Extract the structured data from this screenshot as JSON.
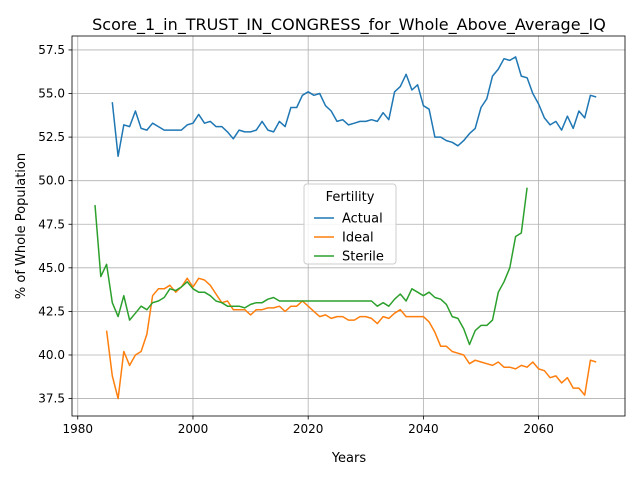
{
  "chart_data": {
    "type": "line",
    "title": "Score_1_in_TRUST_IN_CONGRESS_for_Whole_Above_Average_IQ",
    "xlabel": "Years",
    "ylabel": "% of Whole Population",
    "xlim": [
      1979,
      2075
    ],
    "ylim": [
      36.5,
      58.3
    ],
    "xticks": [
      1980,
      2000,
      2020,
      2040,
      2060
    ],
    "yticks": [
      37.5,
      40.0,
      42.5,
      45.0,
      47.5,
      50.0,
      52.5,
      55.0,
      57.5
    ],
    "xtick_labels": [
      "1980",
      "2000",
      "2020",
      "2040",
      "2060"
    ],
    "ytick_labels": [
      "37.5",
      "40.0",
      "42.5",
      "45.0",
      "47.5",
      "50.0",
      "52.5",
      "55.0",
      "57.5"
    ],
    "grid": true,
    "legend": {
      "title": "Fertility",
      "location": "center"
    },
    "series": [
      {
        "name": "Actual",
        "color": "#1f77b4",
        "x": [
          1986,
          1987,
          1988,
          1989,
          1990,
          1991,
          1992,
          1993,
          1994,
          1995,
          1996,
          1997,
          1998,
          1999,
          2000,
          2001,
          2002,
          2003,
          2004,
          2005,
          2006,
          2007,
          2008,
          2009,
          2010,
          2011,
          2012,
          2013,
          2014,
          2015,
          2016,
          2017,
          2018,
          2019,
          2020,
          2021,
          2022,
          2023,
          2024,
          2025,
          2026,
          2027,
          2028,
          2029,
          2030,
          2031,
          2032,
          2033,
          2034,
          2035,
          2036,
          2037,
          2038,
          2039,
          2040,
          2041,
          2042,
          2043,
          2044,
          2045,
          2046,
          2047,
          2048,
          2049,
          2050,
          2051,
          2052,
          2053,
          2054,
          2055,
          2056,
          2057,
          2058,
          2059,
          2060,
          2061,
          2062,
          2063,
          2064,
          2065,
          2066,
          2067,
          2068,
          2069,
          2070
        ],
        "y": [
          54.5,
          51.4,
          53.2,
          53.1,
          54.0,
          53.0,
          52.9,
          53.3,
          53.1,
          52.9,
          52.9,
          52.9,
          52.9,
          53.2,
          53.3,
          53.8,
          53.3,
          53.4,
          53.1,
          53.1,
          52.8,
          52.4,
          52.9,
          52.8,
          52.8,
          52.9,
          53.4,
          52.9,
          52.8,
          53.4,
          53.1,
          54.2,
          54.2,
          54.9,
          55.1,
          54.9,
          55.0,
          54.3,
          54.0,
          53.4,
          53.5,
          53.2,
          53.3,
          53.4,
          53.4,
          53.5,
          53.4,
          53.9,
          53.5,
          55.1,
          55.4,
          56.1,
          55.2,
          55.5,
          54.3,
          54.1,
          52.5,
          52.5,
          52.3,
          52.2,
          52.0,
          52.3,
          52.7,
          53.0,
          54.2,
          54.7,
          56.0,
          56.4,
          57.0,
          56.9,
          57.1,
          56.0,
          55.9,
          55.0,
          54.4,
          53.6,
          53.2,
          53.4,
          52.9,
          53.7,
          53.0,
          54.0,
          53.6,
          54.9,
          54.8
        ]
      },
      {
        "name": "Ideal",
        "color": "#ff7f0e",
        "x": [
          1985,
          1986,
          1987,
          1988,
          1989,
          1990,
          1991,
          1992,
          1993,
          1994,
          1995,
          1996,
          1997,
          1998,
          1999,
          2000,
          2001,
          2002,
          2003,
          2004,
          2005,
          2006,
          2007,
          2008,
          2009,
          2010,
          2011,
          2012,
          2013,
          2014,
          2015,
          2016,
          2017,
          2018,
          2019,
          2020,
          2021,
          2022,
          2023,
          2024,
          2025,
          2026,
          2027,
          2028,
          2029,
          2030,
          2031,
          2032,
          2033,
          2034,
          2035,
          2036,
          2037,
          2038,
          2039,
          2040,
          2041,
          2042,
          2043,
          2044,
          2045,
          2046,
          2047,
          2048,
          2049,
          2050,
          2051,
          2052,
          2053,
          2054,
          2055,
          2056,
          2057,
          2058,
          2059,
          2060,
          2061,
          2062,
          2063,
          2064,
          2065,
          2066,
          2067,
          2068,
          2069,
          2070
        ],
        "y": [
          41.4,
          38.8,
          37.5,
          40.2,
          39.4,
          40.0,
          40.2,
          41.2,
          43.4,
          43.8,
          43.8,
          44.0,
          43.6,
          43.9,
          44.4,
          43.9,
          44.4,
          44.3,
          44.0,
          43.5,
          43.0,
          43.1,
          42.6,
          42.6,
          42.6,
          42.3,
          42.6,
          42.6,
          42.7,
          42.7,
          42.8,
          42.5,
          42.8,
          42.8,
          43.1,
          42.8,
          42.5,
          42.2,
          42.3,
          42.1,
          42.2,
          42.2,
          42.0,
          42.0,
          42.2,
          42.2,
          42.1,
          41.8,
          42.2,
          42.1,
          42.4,
          42.6,
          42.2,
          42.2,
          42.2,
          42.2,
          41.9,
          41.3,
          40.5,
          40.5,
          40.2,
          40.1,
          40.0,
          39.5,
          39.7,
          39.6,
          39.5,
          39.4,
          39.6,
          39.3,
          39.3,
          39.2,
          39.4,
          39.3,
          39.6,
          39.2,
          39.1,
          38.7,
          38.8,
          38.4,
          38.7,
          38.1,
          38.1,
          37.7,
          39.7,
          39.6
        ]
      },
      {
        "name": "Sterile",
        "color": "#2ca02c",
        "x": [
          1983,
          1984,
          1985,
          1986,
          1987,
          1988,
          1989,
          1990,
          1991,
          1992,
          1993,
          1994,
          1995,
          1996,
          1997,
          1998,
          1999,
          2000,
          2001,
          2002,
          2003,
          2004,
          2005,
          2006,
          2007,
          2008,
          2009,
          2010,
          2011,
          2012,
          2013,
          2014,
          2015,
          2016,
          2017,
          2018,
          2019,
          2020,
          2021,
          2022,
          2023,
          2024,
          2025,
          2026,
          2027,
          2028,
          2029,
          2030,
          2031,
          2032,
          2033,
          2034,
          2035,
          2036,
          2037,
          2038,
          2039,
          2040,
          2041,
          2042,
          2043,
          2044,
          2045,
          2046,
          2047,
          2048,
          2049,
          2050,
          2051,
          2052,
          2053,
          2054,
          2055,
          2056,
          2057,
          2058
        ],
        "y": [
          48.6,
          44.5,
          45.2,
          43.0,
          42.2,
          43.4,
          42.0,
          42.4,
          42.8,
          42.6,
          43.0,
          43.1,
          43.3,
          43.8,
          43.7,
          43.9,
          44.2,
          43.8,
          43.6,
          43.6,
          43.4,
          43.1,
          43.0,
          42.8,
          42.8,
          42.8,
          42.7,
          42.9,
          43.0,
          43.0,
          43.2,
          43.3,
          43.1,
          43.1,
          43.1,
          43.1,
          43.1,
          43.1,
          43.1,
          43.1,
          43.1,
          43.1,
          43.1,
          43.1,
          43.1,
          43.1,
          43.1,
          43.1,
          43.1,
          42.8,
          43.0,
          42.8,
          43.2,
          43.5,
          43.1,
          43.8,
          43.6,
          43.4,
          43.6,
          43.3,
          43.2,
          42.9,
          42.2,
          42.1,
          41.5,
          40.6,
          41.4,
          41.7,
          41.7,
          42.0,
          43.6,
          44.2,
          45.0,
          46.8,
          47.0,
          49.6
        ]
      }
    ]
  }
}
